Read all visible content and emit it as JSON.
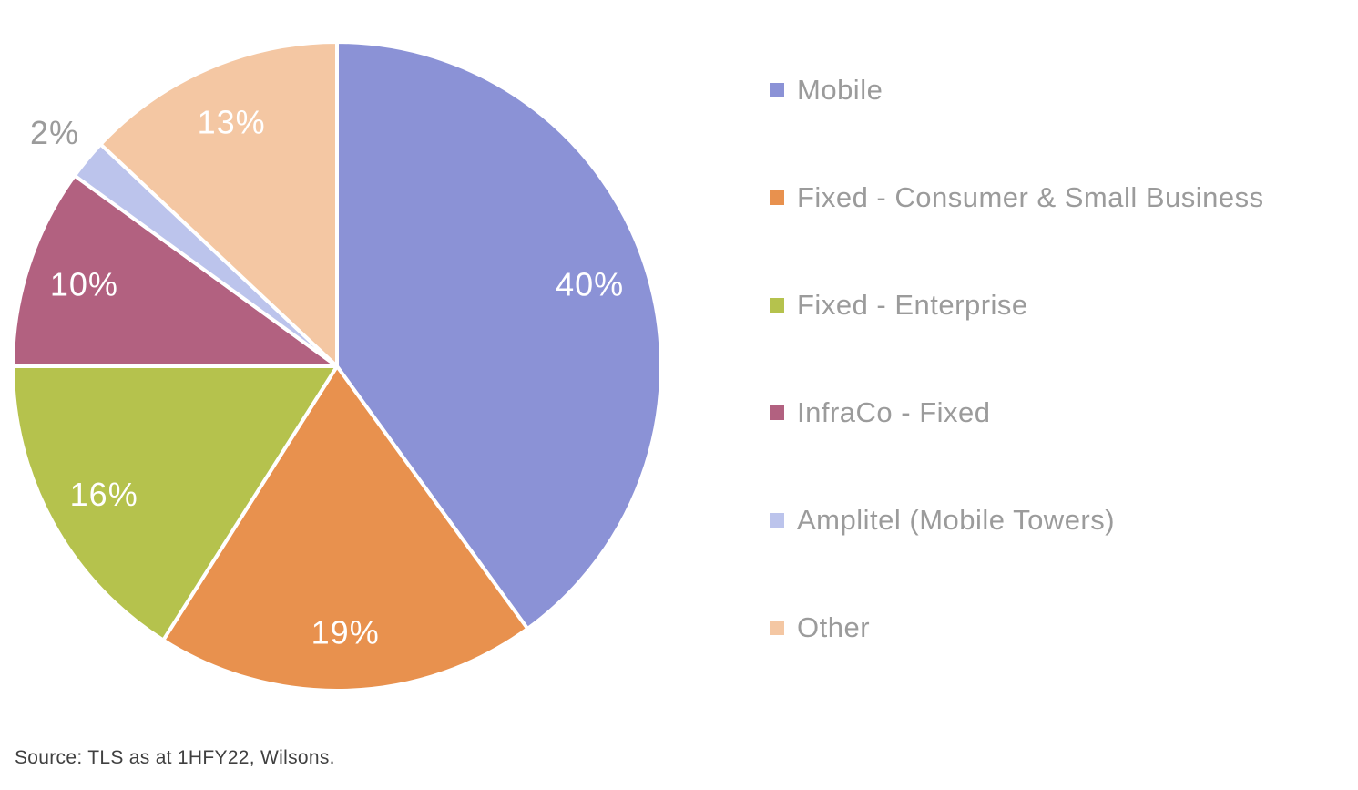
{
  "chart_data": {
    "type": "pie",
    "categories": [
      "Mobile",
      "Fixed - Consumer & Small Business",
      "Fixed - Enterprise",
      "InfraCo - Fixed",
      "Amplitel (Mobile Towers)",
      "Other"
    ],
    "values": [
      40,
      19,
      16,
      10,
      2,
      13
    ],
    "labels": [
      "40%",
      "19%",
      "16%",
      "10%",
      "2%",
      "13%"
    ],
    "colors": [
      "#8b92d6",
      "#e8914e",
      "#b5c24d",
      "#b26180",
      "#bcc4ec",
      "#f4c7a3"
    ],
    "start_angle_deg": 0,
    "direction": "clockwise",
    "legend_position": "right",
    "slice_gap_color": "#ffffff",
    "label_color_inside": "#ffffff",
    "label_color_outside": "#9b9b9b",
    "title": "",
    "grid": false
  },
  "source": {
    "text": "Source: TLS as at 1HFY22, Wilsons."
  }
}
